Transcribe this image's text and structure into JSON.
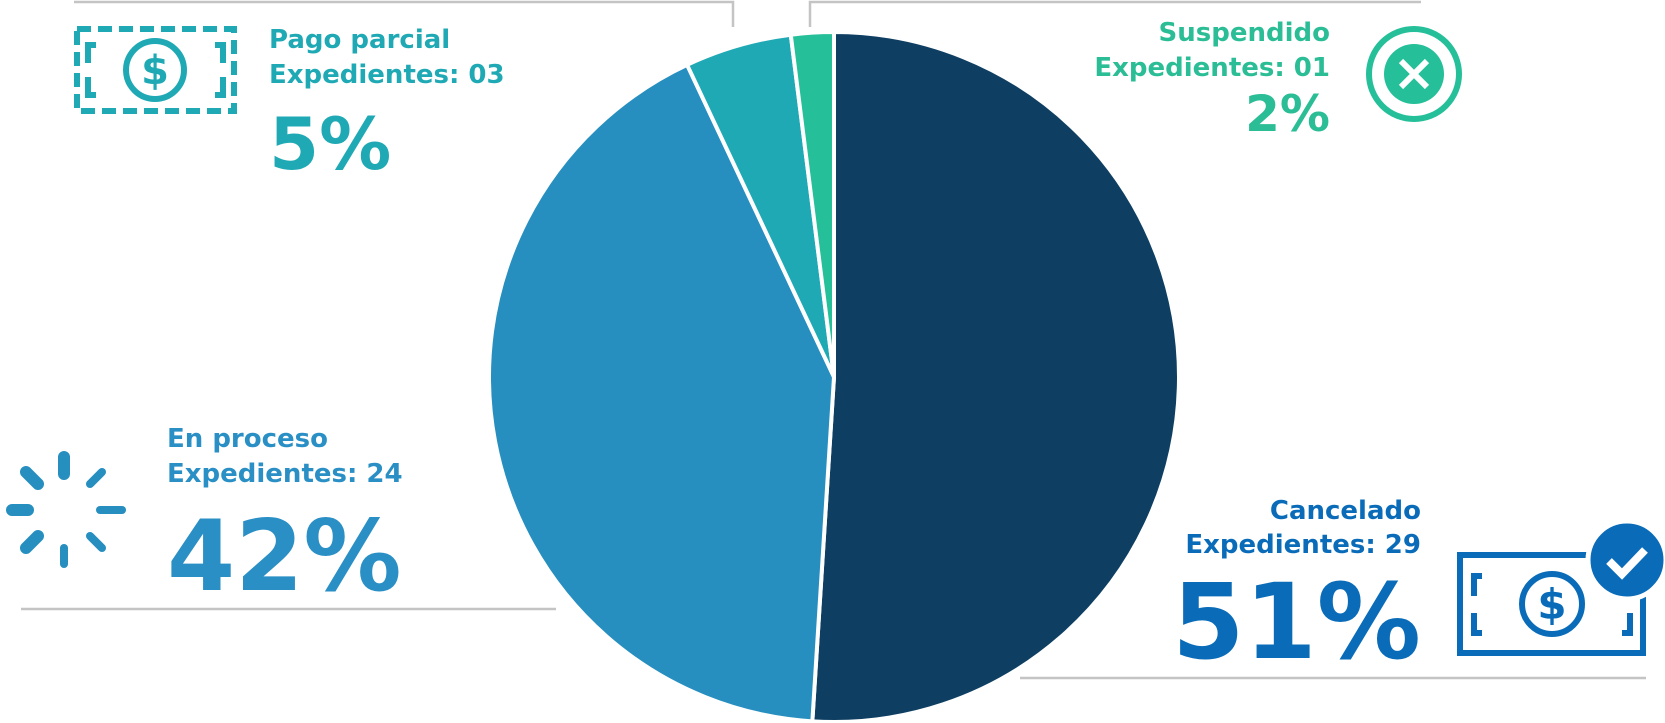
{
  "chart_data": {
    "type": "pie",
    "categories": [
      "Cancelado",
      "En proceso",
      "Pago parcial",
      "Suspendido"
    ],
    "values": [
      51,
      42,
      5,
      2
    ],
    "value_labels": [
      "51%",
      "42%",
      "5%",
      "2%"
    ],
    "counts": [
      "Expedientes: 29",
      "Expedientes: 24",
      "Expedientes: 03",
      "Expedientes: 01"
    ],
    "colors": [
      "#0e3f63",
      "#268fc0",
      "#1fa9b4",
      "#25bf99"
    ],
    "label_colors": [
      "#0a6cb8",
      "#2a8fc5",
      "#1fa9b4",
      "#2bbd95"
    ]
  }
}
